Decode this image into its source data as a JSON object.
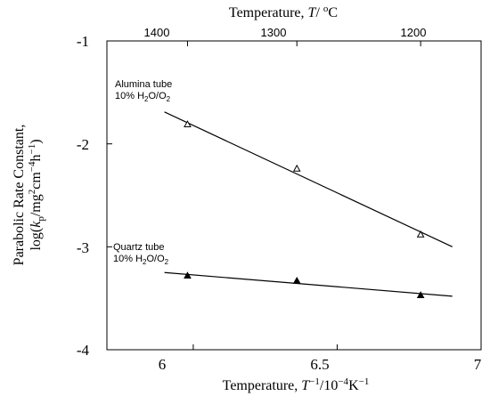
{
  "chart_data": {
    "type": "scatter",
    "xlabel": {
      "prefix": "Temperature, ",
      "var": "T",
      "sup1": "−1",
      "mid": "/10",
      "sup2": "−4",
      "unit": "K",
      "sup3": "−1"
    },
    "top_xlabel": {
      "prefix": "Temperature, ",
      "var": "T",
      "mid": "/ ",
      "sup": "o",
      "unit": "C"
    },
    "ylabel": {
      "line1": "Parabolic Rate Constant,",
      "line2": {
        "a": "log(",
        "k": "k",
        "sub": "p",
        "b": "/mg",
        "sup1": "2",
        "c": "cm",
        "sup2": "−4",
        "d": "h",
        "sup3": "−1",
        "e": ")"
      }
    },
    "xlim": [
      5.7,
      7.0
    ],
    "ylim": [
      -4,
      -1
    ],
    "x_ticks": [
      "6",
      "6.5",
      "7"
    ],
    "y_ticks": [
      "-1",
      "-2",
      "-3",
      "-4"
    ],
    "top_ticks": [
      "1400",
      "1300",
      "1200"
    ],
    "top_tick_positions_x": [
      5.98,
      6.36,
      6.79
    ],
    "grid": false,
    "series": [
      {
        "label_line1": "Alumina tube",
        "label_line2": {
          "a": "10% H",
          "sub1": "2",
          "b": "O/O",
          "sub2": "2"
        },
        "marker": "open-triangle",
        "x": [
          5.98,
          6.36,
          6.79
        ],
        "y": [
          -1.81,
          -2.24,
          -2.88
        ],
        "fit": {
          "x": [
            5.9,
            6.9
          ],
          "y": [
            -1.69,
            -3.0
          ]
        }
      },
      {
        "label_line1": "Quartz tube",
        "label_line2": {
          "a": "10% H",
          "sub1": "2",
          "b": "O/O",
          "sub2": "2"
        },
        "marker": "filled-triangle",
        "x": [
          5.98,
          6.36,
          6.79
        ],
        "y": [
          -3.28,
          -3.33,
          -3.47
        ],
        "fit": {
          "x": [
            5.9,
            6.9
          ],
          "y": [
            -3.25,
            -3.48
          ]
        }
      }
    ]
  }
}
